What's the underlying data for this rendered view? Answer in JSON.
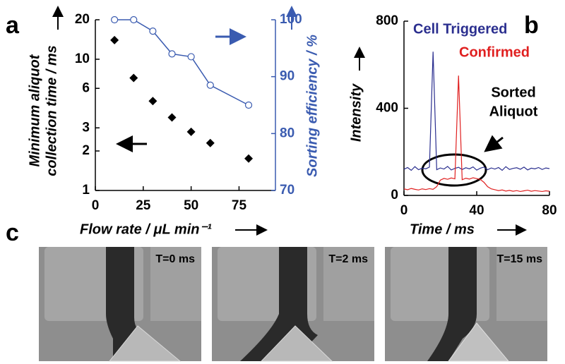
{
  "panel_labels": [
    "a",
    "b",
    "c"
  ],
  "chart_data": [
    {
      "type": "scatter",
      "xlabel": "Flow rate / μL min⁻¹",
      "ylabel_lines": [
        "Minimum aliquot",
        "collection  time / ms"
      ],
      "y2label": "Sorting efficiency / %",
      "x": [
        10,
        20,
        30,
        40,
        50,
        60,
        80
      ],
      "xlim": [
        0,
        94
      ],
      "xticks": [
        0,
        25,
        50,
        75
      ],
      "ylim": [
        1,
        20
      ],
      "yscale": "log",
      "yticks": [
        1,
        2,
        3,
        6,
        10,
        20
      ],
      "y2lim": [
        70,
        100
      ],
      "y2ticks": [
        70,
        80,
        90,
        100
      ],
      "series": [
        {
          "color": "#000000",
          "marker": "diamond",
          "values": [
            14,
            7.2,
            4.8,
            3.6,
            2.8,
            2.3,
            1.75
          ]
        },
        {
          "color": "#3a5bb0",
          "marker": "circle",
          "axis": "y2",
          "line": true,
          "values": [
            100,
            100,
            98,
            94,
            93.5,
            88.5,
            85
          ]
        }
      ]
    },
    {
      "type": "line",
      "xlabel": "Time / ms",
      "ylabel": "Intensity",
      "annotation_lines": [
        "Sorted",
        "Aliquot"
      ],
      "x": [
        0,
        2,
        4,
        6,
        8,
        10,
        12,
        14,
        16,
        18,
        20,
        22,
        24,
        26,
        28,
        30,
        32,
        34,
        36,
        38,
        40,
        42,
        44,
        46,
        48,
        50,
        52,
        54,
        56,
        58,
        60,
        62,
        64,
        66,
        68,
        70,
        72,
        74,
        76,
        78,
        80
      ],
      "xlim": [
        0,
        80
      ],
      "xticks": [
        0,
        40,
        80
      ],
      "ylim": [
        0,
        800
      ],
      "yticks": [
        0,
        400,
        800
      ],
      "series": [
        {
          "name": "Cell Triggered",
          "color": "#2b2f8f",
          "values": [
            120,
            128,
            115,
            132,
            118,
            125,
            122,
            130,
            660,
            118,
            126,
            121,
            133,
            117,
            124,
            129,
            119,
            127,
            122,
            131,
            116,
            125,
            130,
            118,
            126,
            121,
            128,
            115,
            132,
            119,
            124,
            127,
            120,
            130,
            117,
            125,
            122,
            128,
            119,
            126,
            123
          ]
        },
        {
          "name": "Confirmed",
          "color": "#e02020",
          "values": [
            30,
            26,
            32,
            28,
            25,
            30,
            27,
            31,
            28,
            40,
            70,
            78,
            74,
            80,
            76,
            550,
            72,
            79,
            75,
            81,
            77,
            73,
            60,
            40,
            30,
            26,
            22,
            25,
            20,
            23,
            19,
            22,
            18,
            21,
            24,
            19,
            22,
            20,
            18,
            21,
            19
          ]
        }
      ]
    }
  ],
  "images": [
    {
      "label": "T=0 ms"
    },
    {
      "label": "T=2 ms"
    },
    {
      "label": "T=15 ms"
    }
  ]
}
